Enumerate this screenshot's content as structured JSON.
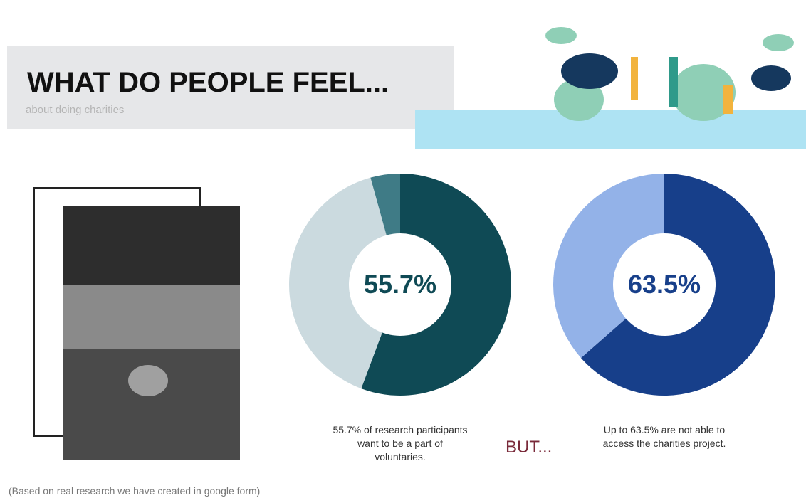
{
  "header": {
    "title": "WHAT DO PEOPLE FEEL...",
    "subtitle": "about doing charities"
  },
  "chart_data": [
    {
      "type": "donut",
      "values": [
        55.7,
        40,
        4.3
      ],
      "value_labels": [
        "55.7%",
        null,
        null
      ],
      "colors": [
        "#0f4a55",
        "#cbdadf",
        "#3f7b86"
      ],
      "label_color": "#0f4a55"
    },
    {
      "type": "donut",
      "values": [
        63.5,
        36.5
      ],
      "value_labels": [
        "63.5%",
        null
      ],
      "colors": [
        "#173f8a",
        "#93b2e8"
      ],
      "label_color": "#173f8a"
    }
  ],
  "captions": [
    "55.7% of research participants want to be a part of voluntaries.",
    "Up to 63.5% are not able to access the charities project."
  ],
  "connector": "BUT...",
  "footnote": "(Based on real research we have created in google form)"
}
